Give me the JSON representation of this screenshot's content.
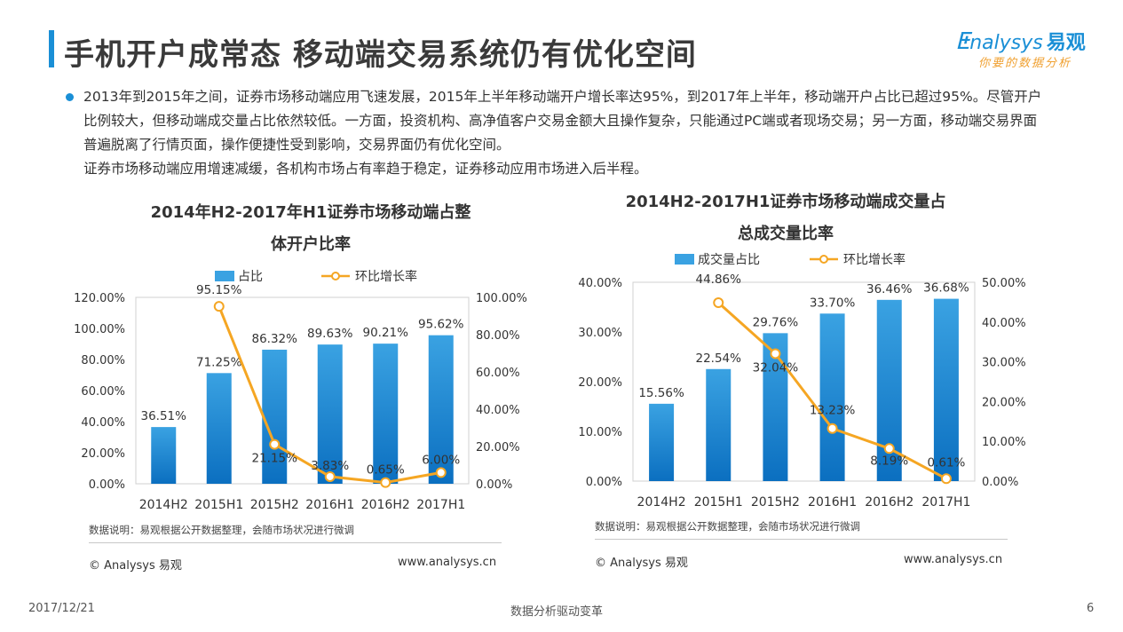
{
  "header": {
    "title": "手机开户成常态  移动端交易系统仍有优化空间",
    "logo_text": "nalysys",
    "logo_cn": "易观",
    "logo_slogan": "你要的数据分析"
  },
  "summary": {
    "line1": "2013年到2015年之间，证券市场移动端应用飞速发展，2015年上半年移动端开户增长率达95%，到2017年上半年，移动端开户占比已超过95%。尽管开户比例较大，但移动端成交量占比依然较低。一方面，投资机构、高净值客户交易金额大且操作复杂，只能通过PC端或者现场交易；另一方面，移动端交易界面普遍脱离了行情页面，操作便捷性受到影响，交易界面仍有优化空间。",
    "line2": "证券市场移动端应用增速减缓，各机构市场占有率趋于稳定，证券移动应用市场进入后半程。"
  },
  "left_panel": {
    "title_line1": "2014年H2-2017年H1证券市场移动端占整",
    "title_line2": "体开户比率",
    "note": "数据说明：易观根据公开数据整理，会随市场状况进行微调",
    "copyright": "© Analysys 易观",
    "website": "www.analysys.cn"
  },
  "right_panel": {
    "title_line1": "2014H2-2017H1证券市场移动端成交量占",
    "title_line2": "总成交量比率",
    "note": "数据说明：易观根据公开数据整理，会随市场状况进行微调",
    "copyright": "© Analysys 易观",
    "website": "www.analysys.cn"
  },
  "footer": {
    "date": "2017/12/21",
    "center": "数据分析驱动变革",
    "page": "6"
  },
  "colors": {
    "bar_top": "#3aa2e2",
    "bar_bottom": "#0b6fc0",
    "line": "#f5a623",
    "accent": "#1a8fd6"
  },
  "chart_data": [
    {
      "type": "bar",
      "title": "2014年H2-2017年H1证券市场移动端占整体开户比率",
      "categories": [
        "2014H2",
        "2015H1",
        "2015H2",
        "2016H1",
        "2016H2",
        "2017H1"
      ],
      "series": [
        {
          "name": "占比",
          "type": "bar",
          "axis": "left",
          "values": [
            36.51,
            71.25,
            86.32,
            89.63,
            90.21,
            95.62
          ],
          "labels": [
            "36.51%",
            "71.25%",
            "86.32%",
            "89.63%",
            "90.21%",
            "95.62%"
          ]
        },
        {
          "name": "环比增长率",
          "type": "line",
          "axis": "right",
          "values": [
            null,
            95.15,
            21.15,
            3.83,
            0.65,
            6.0
          ],
          "labels": [
            "",
            "95.15%",
            "21.15%",
            "3.83%",
            "0.65%",
            "6.00%"
          ]
        }
      ],
      "left_ticks": [
        "120.00%",
        "100.00%",
        "80.00%",
        "60.00%",
        "40.00%",
        "20.00%",
        "0.00%"
      ],
      "right_ticks": [
        "100.00%",
        "80.00%",
        "60.00%",
        "40.00%",
        "20.00%",
        "0.00%"
      ],
      "ylim_left": [
        0,
        120
      ],
      "ylim_right": [
        0,
        100
      ],
      "grid": false,
      "legend": "top"
    },
    {
      "type": "bar",
      "title": "2014H2-2017H1证券市场移动端成交量占总成交量比率",
      "categories": [
        "2014H2",
        "2015H1",
        "2015H2",
        "2016H1",
        "2016H2",
        "2017H1"
      ],
      "series": [
        {
          "name": "成交量占比",
          "type": "bar",
          "axis": "left",
          "values": [
            15.56,
            22.54,
            29.76,
            33.7,
            36.46,
            36.68
          ],
          "labels": [
            "15.56%",
            "22.54%",
            "29.76%",
            "33.70%",
            "36.46%",
            "36.68%"
          ]
        },
        {
          "name": "环比增长率",
          "type": "line",
          "axis": "right",
          "values": [
            null,
            44.86,
            32.04,
            13.23,
            8.19,
            0.61
          ],
          "labels": [
            "",
            "44.86%",
            "32.04%",
            "13.23%",
            "8.19%",
            "0.61%"
          ]
        }
      ],
      "left_ticks": [
        "40.00%",
        "30.00%",
        "20.00%",
        "10.00%",
        "0.00%"
      ],
      "right_ticks": [
        "50.00%",
        "40.00%",
        "30.00%",
        "20.00%",
        "10.00%",
        "0.00%"
      ],
      "ylim_left": [
        0,
        40
      ],
      "ylim_right": [
        0,
        50
      ],
      "grid": false,
      "legend": "top"
    }
  ]
}
